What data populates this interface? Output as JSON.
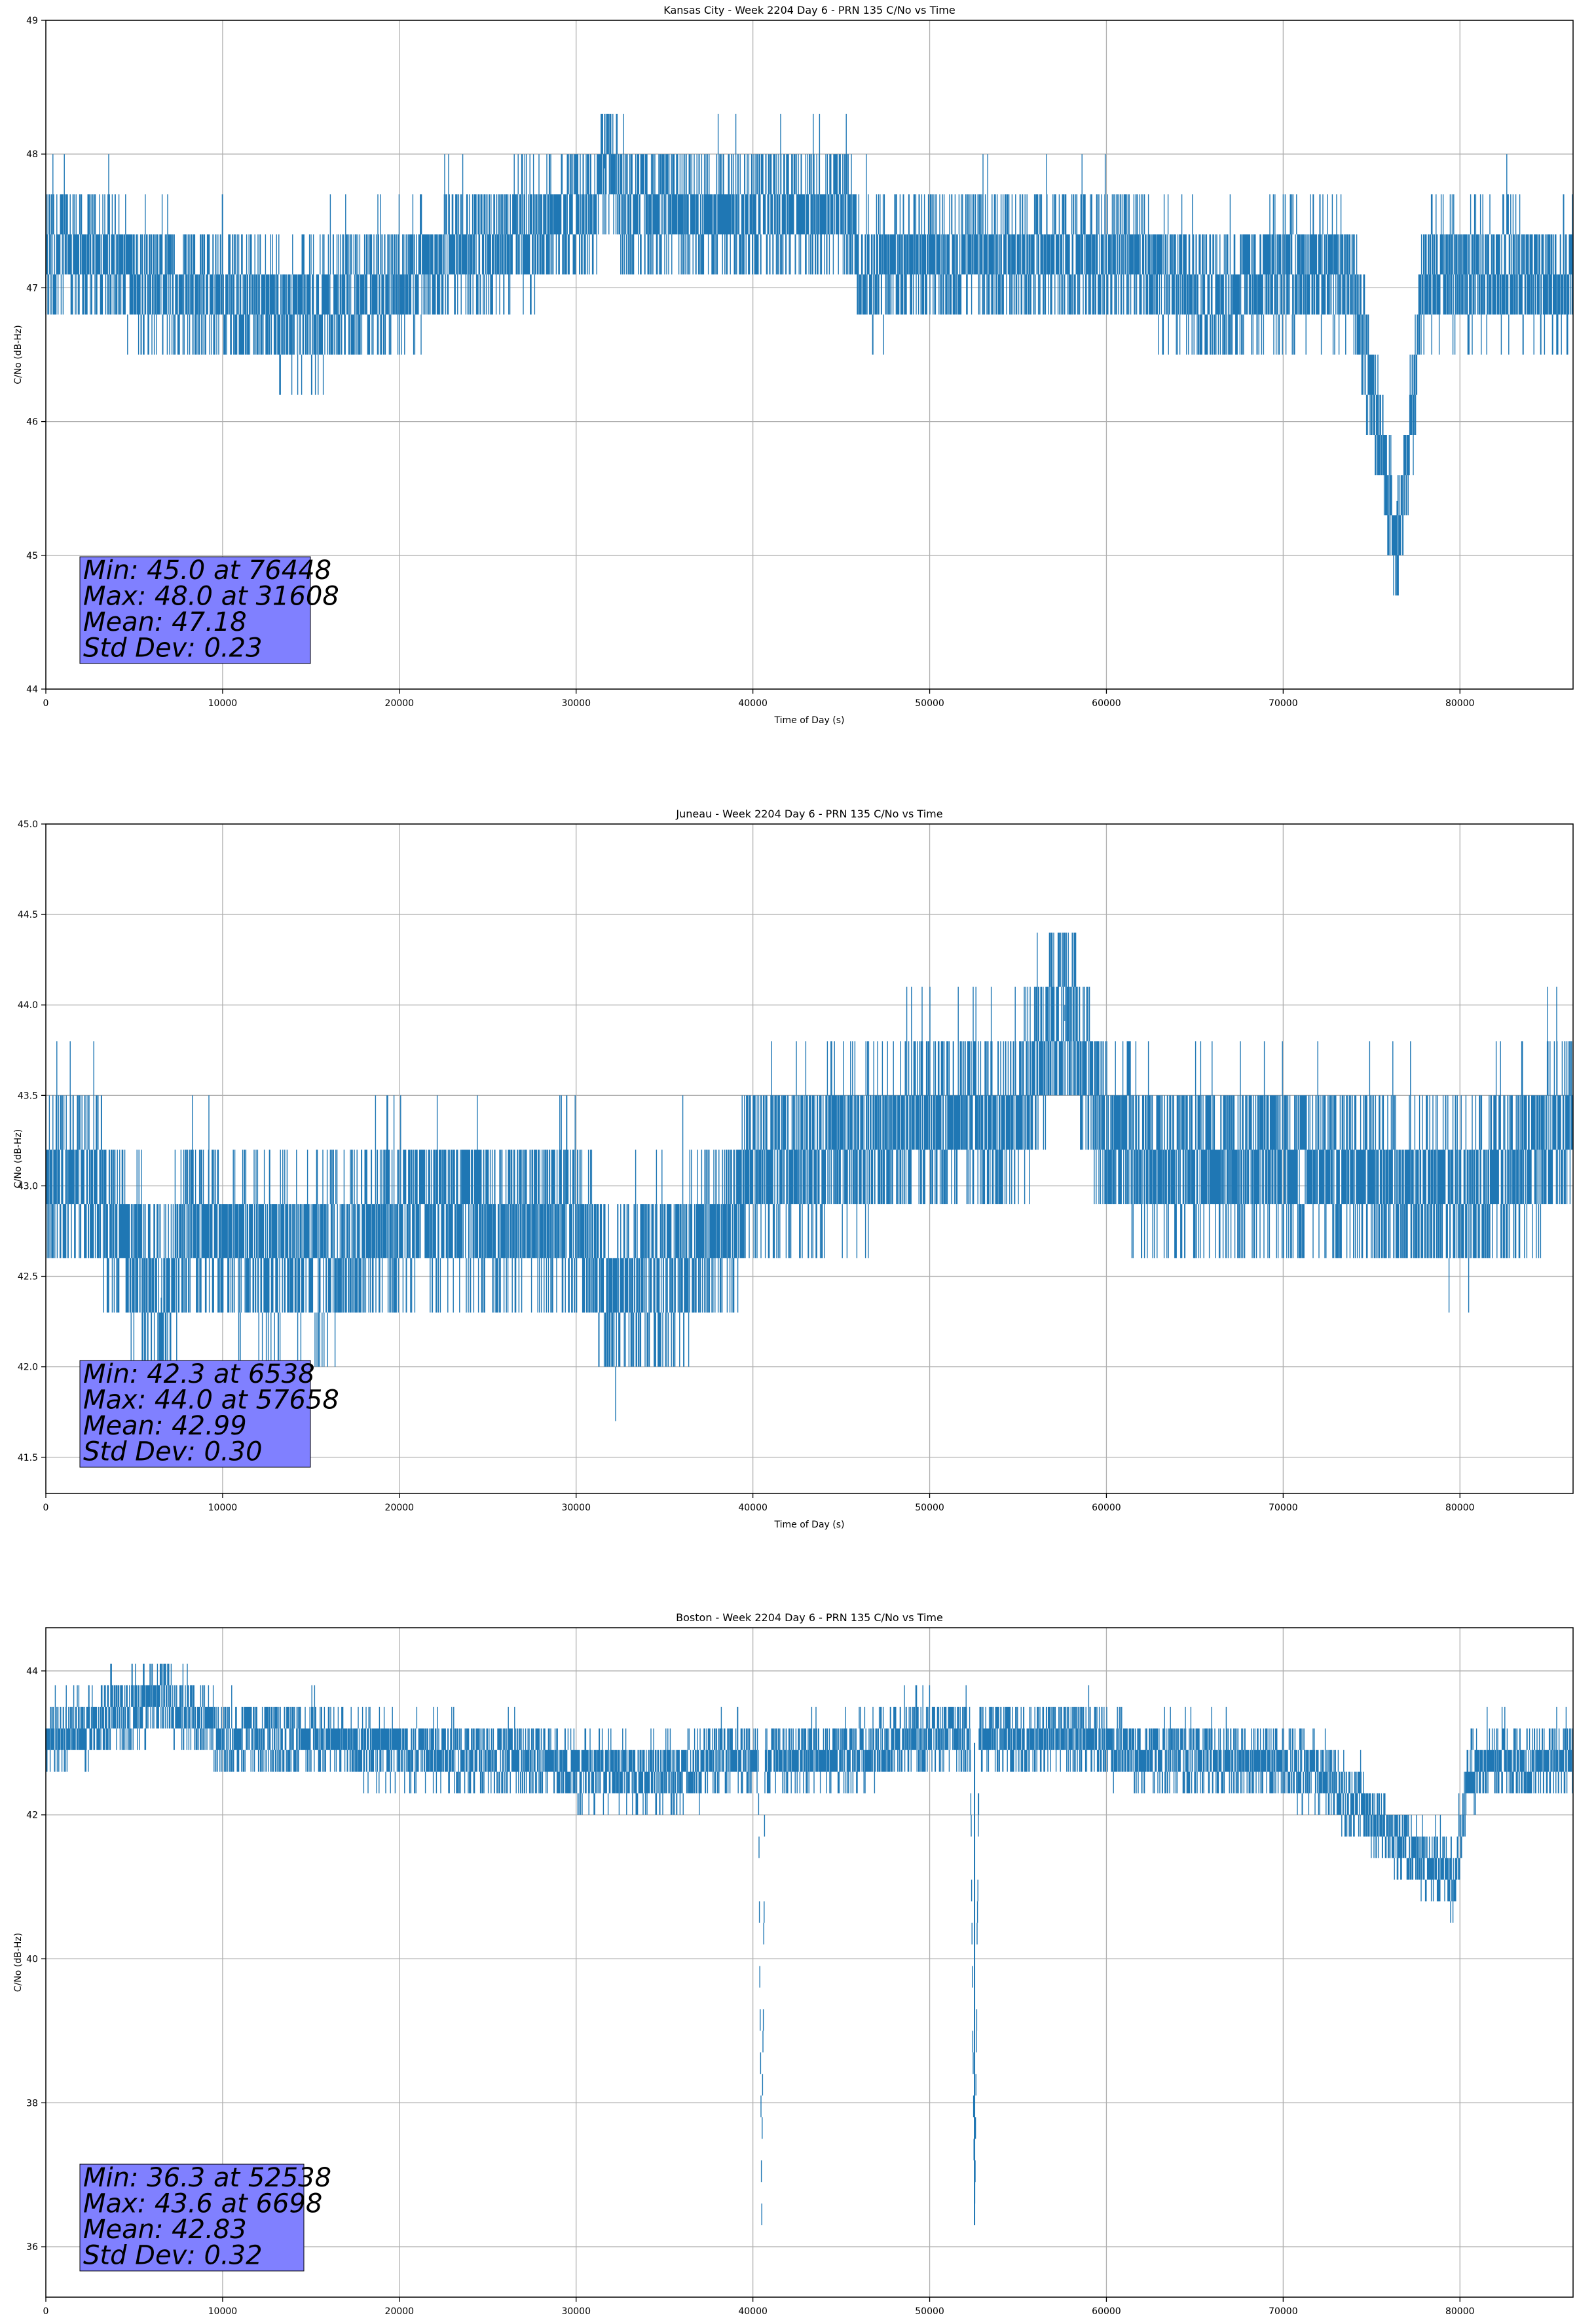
{
  "colors": {
    "line": "#1f77b4",
    "grid": "#b0b0b0",
    "stats_box": "#8080ff",
    "stats_border": "#000000"
  },
  "chart_data": [
    {
      "type": "line",
      "title": "Kansas City - Week 2204 Day 6 - PRN 135 C/No vs Time",
      "xlabel": "Time of Day (s)",
      "ylabel": "C/No (dB-Hz)",
      "xlim": [
        0,
        86400
      ],
      "ylim": [
        44,
        49
      ],
      "xticks": [
        0,
        10000,
        20000,
        30000,
        40000,
        50000,
        60000,
        70000,
        80000
      ],
      "yticks": [
        44,
        45,
        46,
        47,
        48,
        49
      ],
      "ytick_labels": [
        "44",
        "45",
        "46",
        "47",
        "48",
        "49"
      ],
      "grid": true,
      "series": [
        {
          "x": [
            0,
            7500,
            15000,
            20000,
            25000,
            30000,
            31000,
            31608,
            33000,
            35000,
            37000,
            40000,
            45500,
            46000,
            50000,
            55000,
            60000,
            63000,
            66000,
            70000,
            74000,
            76448,
            78000,
            82000,
            85500,
            86400
          ],
          "y": [
            47.3,
            47.0,
            46.8,
            47.0,
            47.3,
            47.5,
            47.5,
            48.0,
            47.5,
            47.6,
            47.5,
            47.5,
            47.6,
            47.1,
            47.2,
            47.2,
            47.2,
            47.1,
            46.9,
            47.1,
            47.1,
            45.0,
            47.1,
            47.1,
            47.0,
            47.1
          ]
        }
      ],
      "stats": [
        "Min: 45.0 at 76448",
        "Max: 48.0 at 31608",
        "Mean: 47.18",
        "Std Dev: 0.23"
      ]
    },
    {
      "type": "line",
      "title": "Juneau - Week 2204 Day 6 - PRN 135 C/No vs Time",
      "xlabel": "Time of Day (s)",
      "ylabel": "C/No (dB-Hz)",
      "xlim": [
        0,
        86400
      ],
      "ylim": [
        41.3,
        45.0
      ],
      "xticks": [
        0,
        10000,
        20000,
        30000,
        40000,
        50000,
        60000,
        70000,
        80000
      ],
      "yticks": [
        41.5,
        42.0,
        42.5,
        43.0,
        43.5,
        44.0,
        44.5,
        45.0
      ],
      "ytick_labels": [
        "41.5",
        "42.0",
        "42.5",
        "43.0",
        "43.5",
        "44.0",
        "44.5",
        "45.0"
      ],
      "grid": true,
      "series": [
        {
          "x": [
            0,
            3000,
            6538,
            8000,
            12000,
            16000,
            20000,
            25000,
            30000,
            32000,
            39000,
            40000,
            45000,
            50000,
            55000,
            57658,
            60000,
            63000,
            70000,
            75000,
            80000,
            86400
          ],
          "y": [
            43.0,
            42.9,
            42.3,
            42.7,
            42.6,
            42.6,
            42.8,
            42.8,
            42.8,
            42.3,
            42.8,
            43.1,
            43.2,
            43.3,
            43.4,
            44.0,
            43.3,
            43.1,
            43.1,
            43.0,
            42.9,
            43.3
          ]
        }
      ],
      "stats": [
        "Min: 42.3 at 6538",
        "Max: 44.0 at 57658",
        "Mean: 42.99",
        "Std Dev: 0.30"
      ]
    },
    {
      "type": "line",
      "title": "Boston - Week 2204 Day 6 - PRN 135 C/No vs Time",
      "xlabel": "Time of Day (s)",
      "ylabel": "C/No (dB-Hz)",
      "xlim": [
        0,
        86400
      ],
      "ylim": [
        35.3,
        44.6
      ],
      "xticks": [
        0,
        10000,
        20000,
        30000,
        40000,
        50000,
        60000,
        70000,
        80000
      ],
      "yticks": [
        36,
        38,
        40,
        42,
        44
      ],
      "ytick_labels": [
        "36",
        "38",
        "40",
        "42",
        "44"
      ],
      "grid": true,
      "series": [
        {
          "x": [
            0,
            6698,
            10000,
            15000,
            20000,
            25000,
            30000,
            35000,
            38000,
            40300,
            40500,
            40700,
            45000,
            50000,
            52300,
            52538,
            52800,
            58000,
            62000,
            65000,
            72000,
            79700,
            80500,
            86400
          ],
          "y": [
            43.0,
            43.6,
            43.1,
            43.0,
            42.9,
            42.8,
            42.6,
            42.5,
            42.7,
            42.8,
            36.6,
            42.8,
            42.8,
            43.1,
            43.0,
            36.3,
            43.0,
            43.1,
            42.8,
            42.8,
            42.6,
            41.0,
            42.6,
            42.8
          ]
        }
      ],
      "stats": [
        "Min: 36.3 at 52538",
        "Max: 43.6 at 6698",
        "Mean: 42.83",
        "Std Dev: 0.32"
      ]
    }
  ]
}
